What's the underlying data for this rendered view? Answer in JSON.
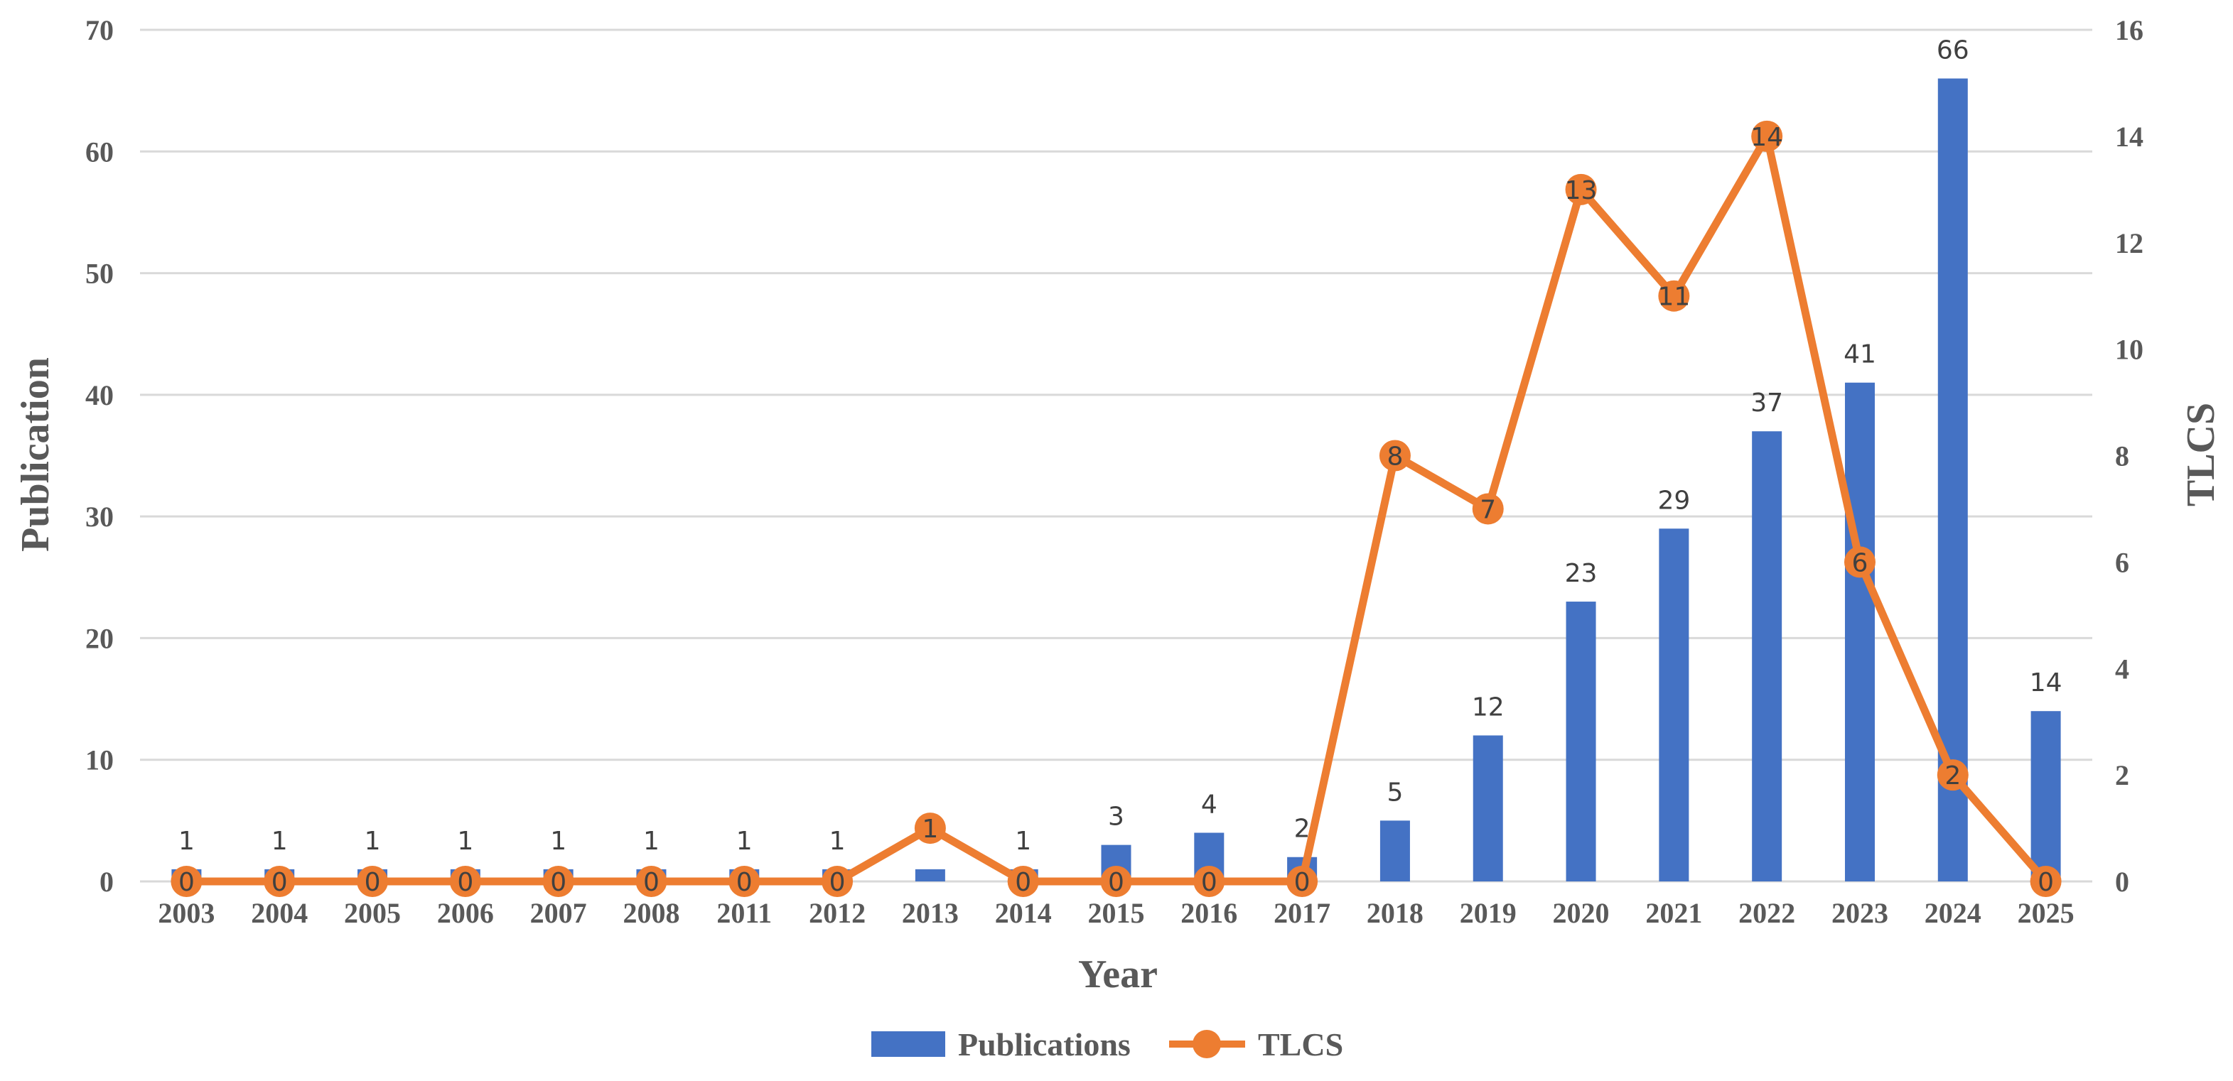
{
  "chart_data": {
    "type": "bar",
    "title": "",
    "xlabel": "Year",
    "ylabel": "Publication",
    "y2label": "TLCS",
    "ylim": [
      0,
      70
    ],
    "y2lim": [
      0,
      16
    ],
    "yticks": [
      "0",
      "10",
      "20",
      "30",
      "40",
      "50",
      "60",
      "70"
    ],
    "y2ticks": [
      "0",
      "2",
      "4",
      "6",
      "8",
      "10",
      "12",
      "14",
      "16"
    ],
    "grid": true,
    "legend_position": "bottom",
    "categories": [
      "2003",
      "2004",
      "2005",
      "2006",
      "2007",
      "2008",
      "2011",
      "2012",
      "2013",
      "2014",
      "2015",
      "2016",
      "2017",
      "2018",
      "2019",
      "2020",
      "2021",
      "2022",
      "2023",
      "2024",
      "2025"
    ],
    "series": [
      {
        "name": "Publications",
        "type": "bar",
        "axis": "left",
        "color": "#4472C4",
        "values": [
          1,
          1,
          1,
          1,
          1,
          1,
          1,
          1,
          1,
          1,
          3,
          4,
          2,
          5,
          12,
          23,
          29,
          37,
          41,
          66,
          14
        ],
        "labels": [
          "1",
          "1",
          "1",
          "1",
          "1",
          "1",
          "1",
          "1",
          "",
          "1",
          "3",
          "4",
          "2",
          "5",
          "12",
          "23",
          "29",
          "37",
          "41",
          "66",
          "14"
        ]
      },
      {
        "name": "TLCS",
        "type": "line",
        "axis": "right",
        "color": "#ED7D31",
        "values": [
          0,
          0,
          0,
          0,
          0,
          0,
          0,
          0,
          1,
          0,
          0,
          0,
          0,
          8,
          7,
          13,
          11,
          14,
          6,
          2,
          0
        ],
        "labels": [
          "0",
          "0",
          "0",
          "0",
          "0",
          "0",
          "0",
          "0",
          "1",
          "0",
          "0",
          "0",
          "0",
          "8",
          "7",
          "13",
          "11",
          "14",
          "6",
          "2",
          "0"
        ]
      }
    ]
  }
}
